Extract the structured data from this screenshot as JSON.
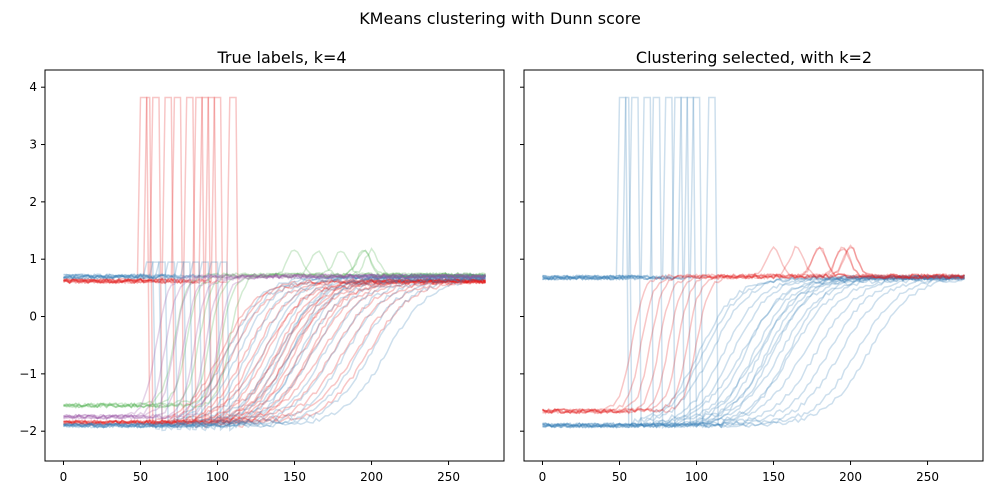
{
  "figure": {
    "suptitle": "KMeans clustering with Dunn score"
  },
  "chart_data": [
    {
      "type": "line",
      "title": "True labels, k=4",
      "xlabel": "",
      "ylabel": "",
      "xlim": [
        -12,
        286
      ],
      "ylim": [
        -2.52,
        4.3
      ],
      "xticks": [
        0,
        50,
        100,
        150,
        200,
        250
      ],
      "yticks": [
        -2,
        -1,
        0,
        1,
        2,
        3,
        4
      ],
      "grid": false,
      "legend": "none",
      "colors": {
        "red": "#e41a1c",
        "blue": "#377eb8",
        "green": "#4daf4a",
        "purple": "#984ea3"
      },
      "series_groups": [
        {
          "color": "red",
          "kind": "spike",
          "base": 0.62,
          "low": -1.9,
          "peak": 3.82,
          "spike_x": [
            52,
            55,
            60,
            68,
            74,
            82,
            88,
            92,
            96,
            100,
            110
          ]
        },
        {
          "color": "blue",
          "kind": "spike",
          "base": 0.7,
          "low": -1.95,
          "peak": 0.95,
          "spike_x": [
            56,
            60,
            64,
            70,
            76,
            80,
            86,
            92,
            98,
            104
          ]
        },
        {
          "color": "red",
          "kind": "sigmoid",
          "start": -1.85,
          "end": 0.62,
          "centers": [
            130,
            140,
            148,
            155,
            162,
            168,
            175,
            182,
            190,
            198
          ]
        },
        {
          "color": "blue",
          "kind": "sigmoid",
          "start": -1.9,
          "end": 0.68,
          "centers": [
            140,
            148,
            156,
            162,
            170,
            176,
            184,
            192,
            200,
            210
          ]
        },
        {
          "color": "green",
          "kind": "step",
          "start": -1.55,
          "end": 0.72,
          "centers": [
            72,
            80,
            88,
            95,
            102,
            108
          ],
          "bump": 1.15,
          "bump_x": [
            150,
            165,
            180,
            195,
            200
          ]
        },
        {
          "color": "purple",
          "kind": "step",
          "start": -1.75,
          "end": 0.7,
          "centers": [
            60,
            66,
            72,
            78,
            85,
            92,
            100
          ]
        }
      ]
    },
    {
      "type": "line",
      "title": "Clustering selected, with k=2",
      "xlabel": "",
      "ylabel": "",
      "xlim": [
        -12,
        286
      ],
      "ylim": [
        -2.52,
        4.3
      ],
      "xticks": [
        0,
        50,
        100,
        150,
        200,
        250
      ],
      "yticks": [],
      "grid": false,
      "legend": "none",
      "colors": {
        "red": "#e41a1c",
        "blue": "#377eb8"
      },
      "series_groups": [
        {
          "color": "blue",
          "kind": "spike",
          "base": 0.68,
          "low": -1.9,
          "peak": 3.82,
          "spike_x": [
            52,
            55,
            60,
            68,
            74,
            82,
            88,
            92,
            96,
            100,
            110
          ]
        },
        {
          "color": "blue",
          "kind": "sigmoid",
          "start": -1.9,
          "end": 0.68,
          "centers": [
            130,
            140,
            148,
            155,
            162,
            170,
            178,
            186,
            194,
            204,
            212
          ]
        },
        {
          "color": "red",
          "kind": "step",
          "start": -1.65,
          "end": 0.7,
          "centers": [
            58,
            64,
            70,
            76,
            82,
            88,
            94,
            100
          ],
          "bump": 1.2,
          "bump_x": [
            150,
            165,
            180,
            195,
            200
          ]
        }
      ]
    }
  ]
}
